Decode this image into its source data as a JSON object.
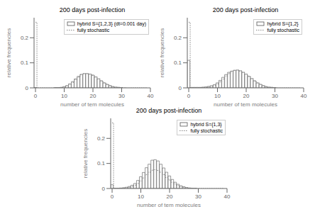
{
  "chart_data": [
    {
      "type": "bar",
      "title": "200 days post-infection",
      "xlabel": "number of tem molecules",
      "ylabel": "relative frequencies",
      "x": [
        0,
        1,
        2,
        3,
        4,
        5,
        6,
        7,
        8,
        9,
        10,
        11,
        12,
        13,
        14,
        15,
        16,
        17,
        18,
        19,
        20,
        21,
        22,
        23,
        24,
        25,
        26,
        27,
        28,
        29,
        30,
        31,
        32,
        33,
        34,
        35,
        36,
        37,
        38,
        39
      ],
      "series": [
        {
          "name": "hybrid S={1,2,3} (dt=0.001 day)",
          "type": "bar",
          "color": "#555555",
          "values": [
            0.001,
            0.0,
            0.0,
            0.0,
            0.0,
            0.0,
            0.0,
            0.001,
            0.001,
            0.002,
            0.005,
            0.009,
            0.016,
            0.025,
            0.036,
            0.046,
            0.054,
            0.057,
            0.057,
            0.055,
            0.051,
            0.044,
            0.036,
            0.028,
            0.02,
            0.014,
            0.009,
            0.005,
            0.003,
            0.002,
            0.001,
            0.0,
            0.0,
            0.0,
            0.0,
            0.0,
            0.0,
            0.0,
            0.0,
            0.0
          ]
        },
        {
          "name": "fully stochastic",
          "type": "line",
          "color": "#888888",
          "line_style": "dotted",
          "values": [
            0.262,
            0.0,
            0.0,
            0.0,
            0.0,
            0.0,
            0.0,
            0.001,
            0.001,
            0.002,
            0.004,
            0.008,
            0.014,
            0.022,
            0.033,
            0.043,
            0.052,
            0.057,
            0.057,
            0.055,
            0.05,
            0.043,
            0.036,
            0.028,
            0.02,
            0.014,
            0.009,
            0.005,
            0.003,
            0.002,
            0.001,
            0.001,
            0.0,
            0.0,
            0.0,
            0.0,
            0.0,
            0.0,
            0.0,
            0.0
          ]
        }
      ],
      "xlim": [
        -0.5,
        40
      ],
      "ylim": [
        0,
        0.28
      ],
      "xticks": [
        0,
        10,
        20,
        30,
        40
      ],
      "yticks": [
        0,
        0.1,
        0.2
      ],
      "legend": "upper right"
    },
    {
      "type": "bar",
      "title": "200 days post-infection",
      "xlabel": "number of tem molecules",
      "ylabel": "relative frequencies",
      "x": [
        0,
        1,
        2,
        3,
        4,
        5,
        6,
        7,
        8,
        9,
        10,
        11,
        12,
        13,
        14,
        15,
        16,
        17,
        18,
        19,
        20,
        21,
        22,
        23,
        24,
        25,
        26,
        27,
        28,
        29,
        30,
        31,
        32,
        33,
        34,
        35,
        36,
        37,
        38,
        39
      ],
      "series": [
        {
          "name": "hybrid S={1,2}",
          "type": "bar",
          "color": "#555555",
          "values": [
            0.11,
            0.002,
            0.002,
            0.002,
            0.002,
            0.003,
            0.004,
            0.006,
            0.009,
            0.013,
            0.02,
            0.03,
            0.042,
            0.053,
            0.062,
            0.067,
            0.07,
            0.071,
            0.068,
            0.062,
            0.055,
            0.046,
            0.037,
            0.028,
            0.02,
            0.014,
            0.009,
            0.005,
            0.003,
            0.002,
            0.001,
            0.0,
            0.0,
            0.0,
            0.0,
            0.0,
            0.0,
            0.0,
            0.0,
            0.0
          ]
        },
        {
          "name": "fully stochastic",
          "type": "line",
          "color": "#888888",
          "line_style": "dotted",
          "values": [
            0.262,
            0.001,
            0.001,
            0.001,
            0.001,
            0.001,
            0.002,
            0.003,
            0.005,
            0.009,
            0.015,
            0.024,
            0.035,
            0.047,
            0.057,
            0.065,
            0.07,
            0.071,
            0.068,
            0.062,
            0.055,
            0.046,
            0.037,
            0.028,
            0.02,
            0.014,
            0.009,
            0.005,
            0.003,
            0.002,
            0.001,
            0.0,
            0.0,
            0.0,
            0.0,
            0.0,
            0.0,
            0.0,
            0.0,
            0.0
          ]
        }
      ],
      "xlim": [
        -0.5,
        40
      ],
      "ylim": [
        0,
        0.28
      ],
      "xticks": [
        0,
        10,
        20,
        30,
        40
      ],
      "yticks": [
        0,
        0.1,
        0.2
      ],
      "legend": "upper right"
    },
    {
      "type": "bar",
      "title": "200 days post-infection",
      "xlabel": "number of tem molecules",
      "ylabel": "relative frequencies",
      "x": [
        0,
        1,
        2,
        3,
        4,
        5,
        6,
        7,
        8,
        9,
        10,
        11,
        12,
        13,
        14,
        15,
        16,
        17,
        18,
        19,
        20,
        21,
        22,
        23,
        24,
        25,
        26,
        27,
        28,
        29,
        30,
        31,
        32,
        33,
        34,
        35,
        36,
        37,
        38,
        39
      ],
      "series": [
        {
          "name": "hybrid S={1,3}",
          "type": "bar",
          "color": "#555555",
          "values": [
            0.015,
            0.001,
            0.001,
            0.002,
            0.003,
            0.005,
            0.008,
            0.013,
            0.02,
            0.032,
            0.047,
            0.064,
            0.083,
            0.097,
            0.113,
            0.115,
            0.11,
            0.097,
            0.082,
            0.065,
            0.05,
            0.036,
            0.025,
            0.017,
            0.011,
            0.007,
            0.004,
            0.002,
            0.001,
            0.001,
            0.0,
            0.0,
            0.0,
            0.0,
            0.0,
            0.0,
            0.0,
            0.0,
            0.0,
            0.0
          ]
        },
        {
          "name": "fully stochastic",
          "type": "line",
          "color": "#888888",
          "line_style": "dotted",
          "values": [
            0.262,
            0.001,
            0.001,
            0.001,
            0.002,
            0.003,
            0.005,
            0.008,
            0.013,
            0.02,
            0.03,
            0.042,
            0.055,
            0.065,
            0.073,
            0.075,
            0.072,
            0.065,
            0.055,
            0.044,
            0.034,
            0.025,
            0.018,
            0.012,
            0.008,
            0.005,
            0.003,
            0.002,
            0.001,
            0.001,
            0.0,
            0.0,
            0.0,
            0.0,
            0.0,
            0.0,
            0.0,
            0.0,
            0.0,
            0.0
          ]
        }
      ],
      "xlim": [
        -0.5,
        40
      ],
      "ylim": [
        0,
        0.28
      ],
      "xticks": [
        0,
        10,
        20,
        30,
        40
      ],
      "yticks": [
        0,
        0.1,
        0.2
      ],
      "legend": "upper right"
    }
  ]
}
